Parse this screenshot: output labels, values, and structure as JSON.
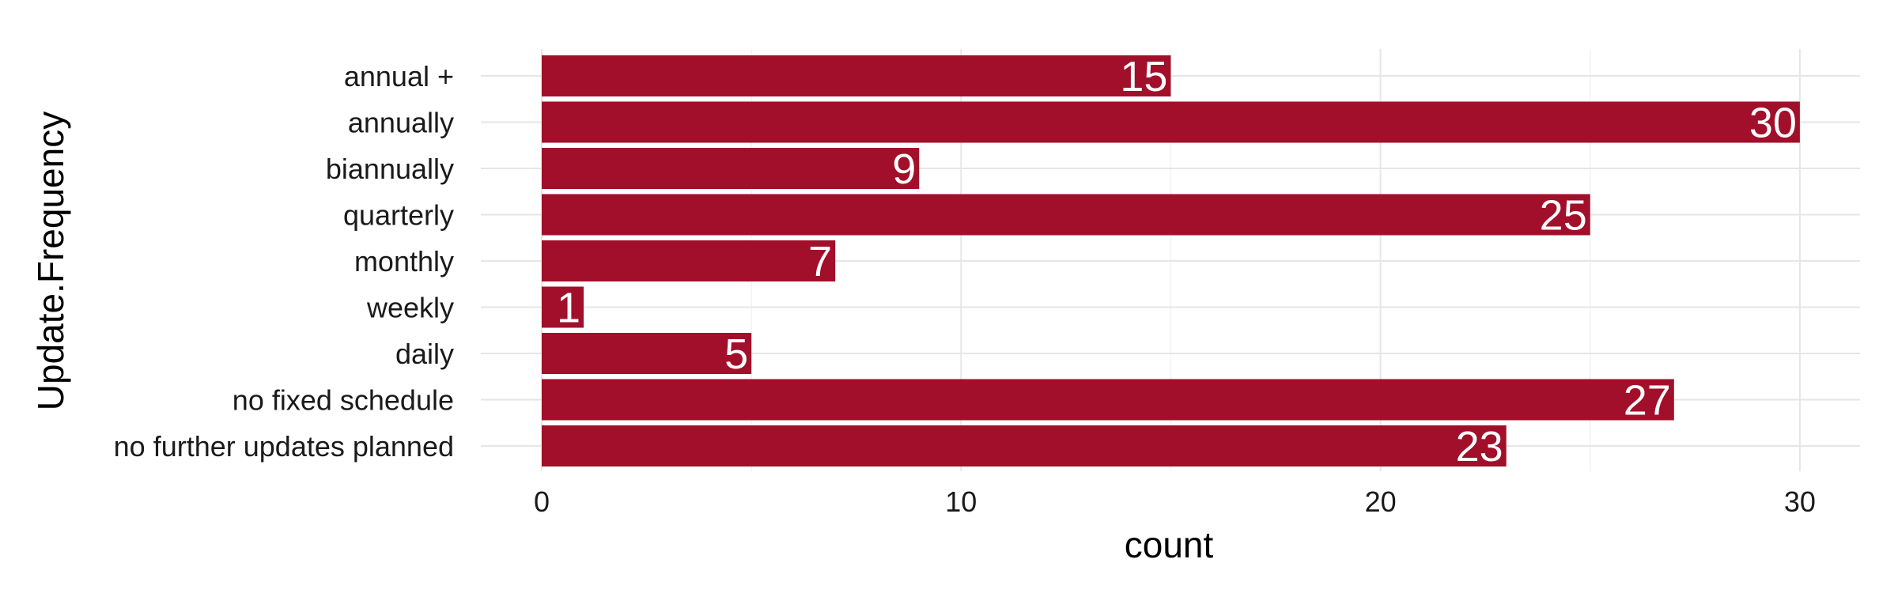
{
  "chart_data": {
    "type": "bar",
    "orientation": "horizontal",
    "title": "",
    "xlabel": "count",
    "ylabel": "Update.Frequency",
    "categories": [
      "annual +",
      "annually",
      "biannually",
      "quarterly",
      "monthly",
      "weekly",
      "daily",
      "no fixed schedule",
      "no further updates planned"
    ],
    "values": [
      15,
      30,
      9,
      25,
      7,
      1,
      5,
      27,
      23
    ],
    "xlim": [
      0,
      31.5
    ],
    "xticks": [
      0,
      10,
      20,
      30
    ],
    "grid": true,
    "legend": "none",
    "bar_color": "#A20F2A",
    "label_color": "#FFFFFF",
    "grid_color": "#E6E6E6"
  }
}
